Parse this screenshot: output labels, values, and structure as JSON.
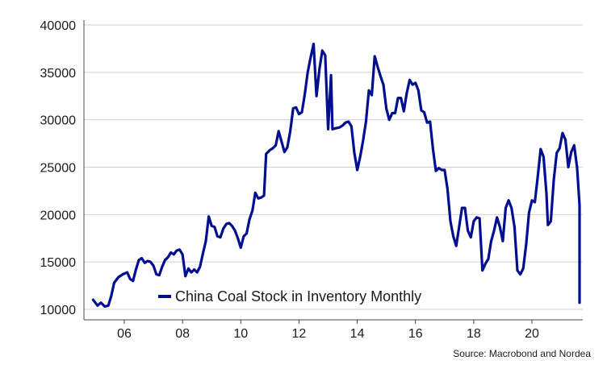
{
  "chart_data": {
    "type": "line",
    "title": "",
    "xlabel": "",
    "ylabel": "",
    "ylim": [
      10000,
      40000
    ],
    "y_ticks": [
      10000,
      15000,
      20000,
      25000,
      30000,
      35000,
      40000
    ],
    "x_ticks": [
      {
        "label": "06",
        "x": 2006.0
      },
      {
        "label": "08",
        "x": 2008.0
      },
      {
        "label": "10",
        "x": 2010.0
      },
      {
        "label": "12",
        "x": 2012.0
      },
      {
        "label": "14",
        "x": 2014.0
      },
      {
        "label": "16",
        "x": 2016.0
      },
      {
        "label": "18",
        "x": 2018.0
      },
      {
        "label": "20",
        "x": 2020.0
      }
    ],
    "xlim": [
      2004.85,
      2021.7
    ],
    "grid": "horizontal",
    "legend_position": "bottom-left",
    "series": [
      {
        "name": "China Coal Stock in Inventory Monthly",
        "color": "#000f8f",
        "points": [
          [
            2004.93,
            11000
          ],
          [
            2005.08,
            10400
          ],
          [
            2005.2,
            10700
          ],
          [
            2005.33,
            10300
          ],
          [
            2005.45,
            10400
          ],
          [
            2005.55,
            11400
          ],
          [
            2005.65,
            12800
          ],
          [
            2005.8,
            13400
          ],
          [
            2005.95,
            13700
          ],
          [
            2006.1,
            13900
          ],
          [
            2006.2,
            13200
          ],
          [
            2006.3,
            13000
          ],
          [
            2006.4,
            14200
          ],
          [
            2006.5,
            15200
          ],
          [
            2006.6,
            15400
          ],
          [
            2006.7,
            14900
          ],
          [
            2006.8,
            15100
          ],
          [
            2006.9,
            15000
          ],
          [
            2007.0,
            14600
          ],
          [
            2007.1,
            13700
          ],
          [
            2007.2,
            13600
          ],
          [
            2007.3,
            14500
          ],
          [
            2007.4,
            15200
          ],
          [
            2007.5,
            15500
          ],
          [
            2007.6,
            16000
          ],
          [
            2007.7,
            15800
          ],
          [
            2007.8,
            16200
          ],
          [
            2007.9,
            16300
          ],
          [
            2008.0,
            15800
          ],
          [
            2008.1,
            13500
          ],
          [
            2008.2,
            14300
          ],
          [
            2008.3,
            13900
          ],
          [
            2008.4,
            14200
          ],
          [
            2008.5,
            13900
          ],
          [
            2008.6,
            14500
          ],
          [
            2008.7,
            15900
          ],
          [
            2008.8,
            17200
          ],
          [
            2008.9,
            19800
          ],
          [
            2009.0,
            18800
          ],
          [
            2009.1,
            18700
          ],
          [
            2009.2,
            17700
          ],
          [
            2009.3,
            17600
          ],
          [
            2009.4,
            18500
          ],
          [
            2009.5,
            19000
          ],
          [
            2009.6,
            19100
          ],
          [
            2009.7,
            18800
          ],
          [
            2009.8,
            18300
          ],
          [
            2009.9,
            17500
          ],
          [
            2010.0,
            16500
          ],
          [
            2010.1,
            17700
          ],
          [
            2010.2,
            18000
          ],
          [
            2010.3,
            19500
          ],
          [
            2010.4,
            20400
          ],
          [
            2010.5,
            22300
          ],
          [
            2010.6,
            21700
          ],
          [
            2010.7,
            21800
          ],
          [
            2010.8,
            22000
          ],
          [
            2010.87,
            26400
          ],
          [
            2011.0,
            26800
          ],
          [
            2011.1,
            27000
          ],
          [
            2011.2,
            27300
          ],
          [
            2011.3,
            28800
          ],
          [
            2011.4,
            27700
          ],
          [
            2011.5,
            26600
          ],
          [
            2011.6,
            27100
          ],
          [
            2011.7,
            28800
          ],
          [
            2011.8,
            31200
          ],
          [
            2011.9,
            31300
          ],
          [
            2012.0,
            30600
          ],
          [
            2012.1,
            30800
          ],
          [
            2012.2,
            32700
          ],
          [
            2012.3,
            35000
          ],
          [
            2012.4,
            36600
          ],
          [
            2012.5,
            38000
          ],
          [
            2012.6,
            32500
          ],
          [
            2012.7,
            35300
          ],
          [
            2012.8,
            37300
          ],
          [
            2012.9,
            36800
          ],
          [
            2013.0,
            29000
          ],
          [
            2013.1,
            34700
          ],
          [
            2013.15,
            29000
          ],
          [
            2013.25,
            29100
          ],
          [
            2013.4,
            29200
          ],
          [
            2013.5,
            29400
          ],
          [
            2013.6,
            29700
          ],
          [
            2013.7,
            29800
          ],
          [
            2013.8,
            29300
          ],
          [
            2013.9,
            26500
          ],
          [
            2014.0,
            24700
          ],
          [
            2014.1,
            26100
          ],
          [
            2014.2,
            27800
          ],
          [
            2014.3,
            29800
          ],
          [
            2014.4,
            33100
          ],
          [
            2014.5,
            32600
          ],
          [
            2014.6,
            36700
          ],
          [
            2014.7,
            35600
          ],
          [
            2014.8,
            34600
          ],
          [
            2014.9,
            33700
          ],
          [
            2015.0,
            31200
          ],
          [
            2015.1,
            30000
          ],
          [
            2015.2,
            30700
          ],
          [
            2015.3,
            30700
          ],
          [
            2015.4,
            32300
          ],
          [
            2015.5,
            32300
          ],
          [
            2015.6,
            30900
          ],
          [
            2015.7,
            32800
          ],
          [
            2015.8,
            34200
          ],
          [
            2015.9,
            33700
          ],
          [
            2016.0,
            33900
          ],
          [
            2016.1,
            33100
          ],
          [
            2016.2,
            31000
          ],
          [
            2016.3,
            30800
          ],
          [
            2016.4,
            29700
          ],
          [
            2016.5,
            29800
          ],
          [
            2016.6,
            26900
          ],
          [
            2016.7,
            24600
          ],
          [
            2016.8,
            24900
          ],
          [
            2016.9,
            24700
          ],
          [
            2017.0,
            24700
          ],
          [
            2017.1,
            22700
          ],
          [
            2017.2,
            19300
          ],
          [
            2017.3,
            17700
          ],
          [
            2017.4,
            16700
          ],
          [
            2017.5,
            18700
          ],
          [
            2017.6,
            20700
          ],
          [
            2017.7,
            20700
          ],
          [
            2017.8,
            18300
          ],
          [
            2017.9,
            17600
          ],
          [
            2018.0,
            19300
          ],
          [
            2018.1,
            19700
          ],
          [
            2018.2,
            19600
          ],
          [
            2018.3,
            14100
          ],
          [
            2018.4,
            14800
          ],
          [
            2018.5,
            15300
          ],
          [
            2018.6,
            17200
          ],
          [
            2018.7,
            18300
          ],
          [
            2018.8,
            19700
          ],
          [
            2018.9,
            18700
          ],
          [
            2019.0,
            17200
          ],
          [
            2019.1,
            20700
          ],
          [
            2019.2,
            21500
          ],
          [
            2019.3,
            20700
          ],
          [
            2019.4,
            18700
          ],
          [
            2019.5,
            14100
          ],
          [
            2019.6,
            13700
          ],
          [
            2019.7,
            14300
          ],
          [
            2019.8,
            16800
          ],
          [
            2019.9,
            20200
          ],
          [
            2020.0,
            21500
          ],
          [
            2020.1,
            21300
          ],
          [
            2020.2,
            24000
          ],
          [
            2020.3,
            26900
          ],
          [
            2020.4,
            26100
          ],
          [
            2020.5,
            22200
          ],
          [
            2020.55,
            18900
          ],
          [
            2020.65,
            19300
          ],
          [
            2020.75,
            23700
          ],
          [
            2020.85,
            26500
          ],
          [
            2020.95,
            27000
          ],
          [
            2021.05,
            28600
          ],
          [
            2021.15,
            27900
          ],
          [
            2021.25,
            25000
          ],
          [
            2021.35,
            26600
          ],
          [
            2021.45,
            27300
          ],
          [
            2021.55,
            25000
          ],
          [
            2021.65,
            21000
          ],
          [
            2021.75,
            16300
          ],
          [
            2021.85,
            15900
          ],
          [
            2021.95,
            15100
          ],
          [
            2022.05,
            13900
          ],
          [
            2022.15,
            13600
          ],
          [
            2022.25,
            13400
          ],
          [
            2022.35,
            10700
          ]
        ]
      }
    ],
    "source": "Source: Macrobond and Nordea"
  }
}
